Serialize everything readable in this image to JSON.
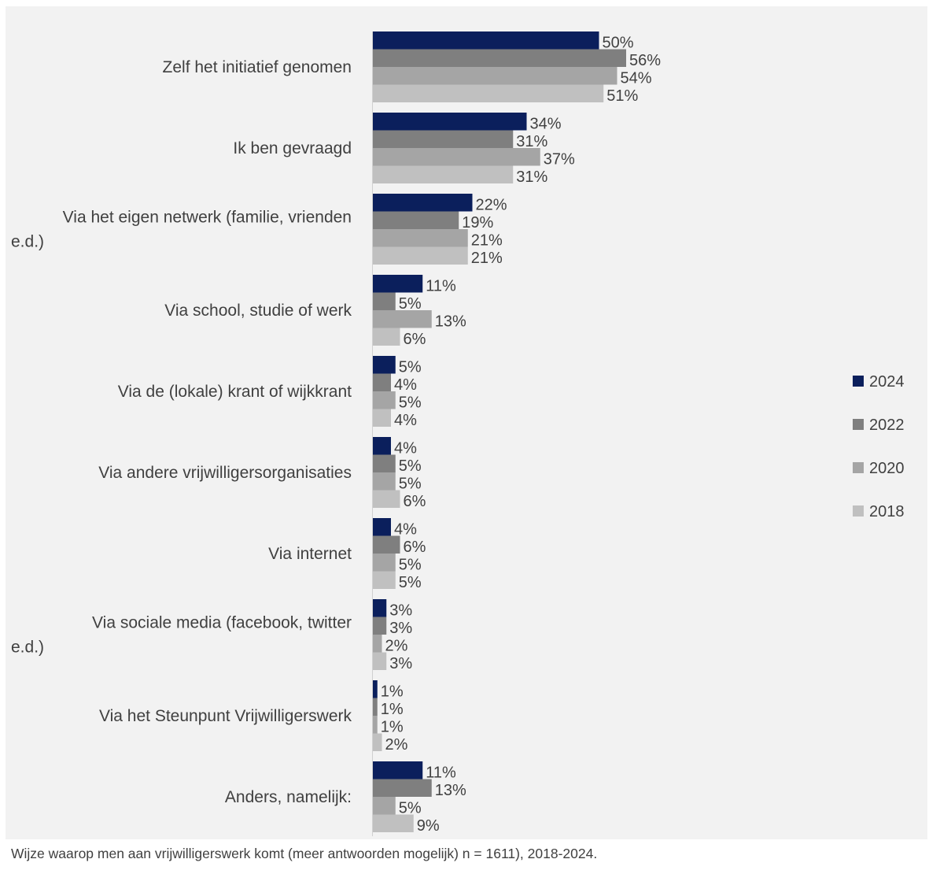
{
  "chart_data": {
    "type": "bar",
    "orientation": "horizontal",
    "categories": [
      "Zelf het initiatief genomen",
      "Ik ben gevraagd",
      "Via het eigen netwerk (familie, vrienden e.d.)",
      "Via school, studie of werk",
      "Via de (lokale) krant of wijkkrant",
      "Via andere vrijwilligersorganisaties",
      "Via internet",
      "Via sociale media (facebook, twitter e.d.)",
      "Via het Steunpunt Vrijwilligerswerk",
      "Anders, namelijk:"
    ],
    "series": [
      {
        "name": "2024",
        "color": "#0b1f5c",
        "values": [
          50,
          34,
          22,
          11,
          5,
          4,
          4,
          3,
          1,
          11
        ]
      },
      {
        "name": "2022",
        "color": "#7f7f7f",
        "values": [
          56,
          31,
          19,
          5,
          4,
          5,
          6,
          3,
          1,
          13
        ]
      },
      {
        "name": "2020",
        "color": "#a5a5a5",
        "values": [
          54,
          37,
          21,
          13,
          5,
          5,
          5,
          2,
          1,
          5
        ]
      },
      {
        "name": "2018",
        "color": "#c0c0c0",
        "values": [
          51,
          31,
          21,
          6,
          4,
          6,
          5,
          3,
          2,
          9
        ]
      }
    ],
    "value_suffix": "%",
    "legend_position": "right",
    "grid": false
  },
  "caption": "Wijze waarop men aan vrijwilligerswerk komt (meer antwoorden mogelijk) n = 1611), 2018-2024."
}
